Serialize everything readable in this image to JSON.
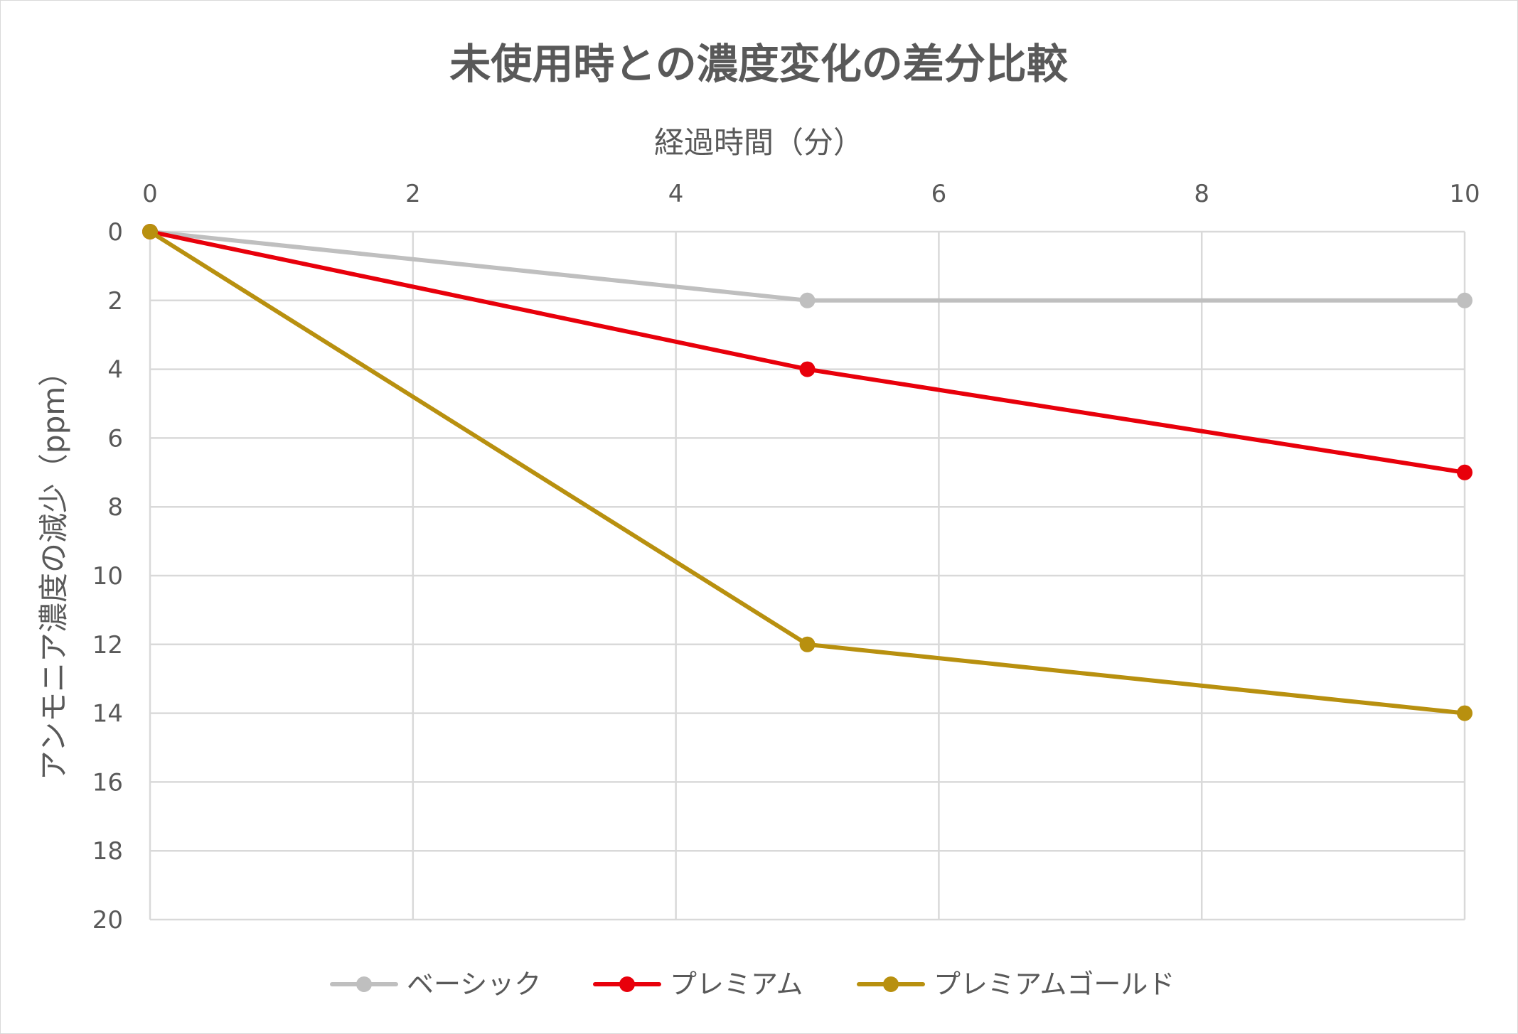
{
  "chart_data": {
    "type": "line",
    "title": "未使用時との濃度変化の差分比較",
    "xlabel": "経過時間（分）",
    "ylabel": "アンモニア濃度の減少（ppm）",
    "xlim": [
      0,
      10
    ],
    "ylim": [
      0,
      20
    ],
    "y_inverted": true,
    "x_axis_position": "top",
    "x_ticks": [
      0,
      2,
      4,
      6,
      8,
      10
    ],
    "y_ticks": [
      0,
      2,
      4,
      6,
      8,
      10,
      12,
      14,
      16,
      18,
      20
    ],
    "grid": true,
    "legend_position": "bottom",
    "series": [
      {
        "name": "ベーシック",
        "color": "#bfbfbf",
        "x": [
          0,
          5,
          10
        ],
        "y": [
          0,
          2,
          2
        ]
      },
      {
        "name": "プレミアム",
        "color": "#e8000b",
        "x": [
          0,
          5,
          10
        ],
        "y": [
          0,
          4,
          7
        ]
      },
      {
        "name": "プレミアムゴールド",
        "color": "#b8900f",
        "x": [
          0,
          5,
          10
        ],
        "y": [
          0,
          12,
          14
        ]
      }
    ]
  }
}
